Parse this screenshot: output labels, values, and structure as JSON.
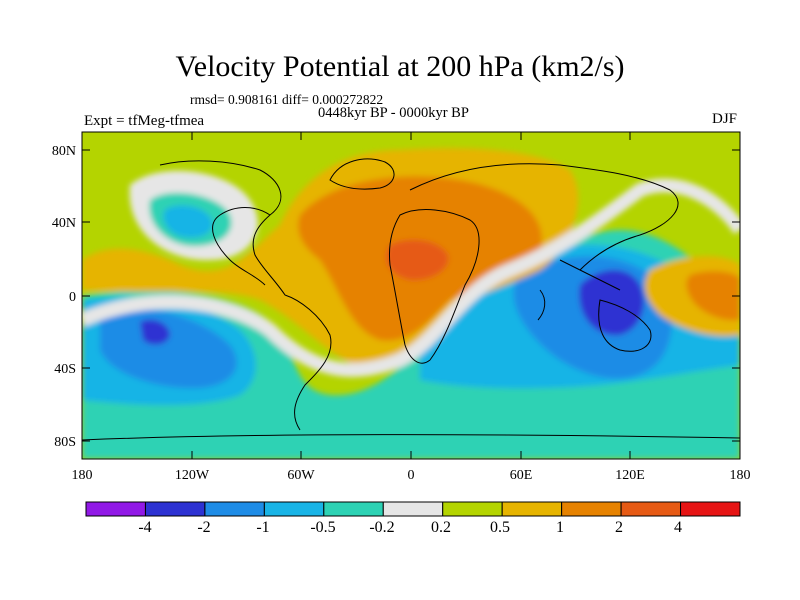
{
  "title": "Velocity Potential at 200 hPa (km2/s)",
  "stats": "rmsd= 0.908161 diff= 0.000272822",
  "period": "0448kyr BP - 0000kyr BP",
  "experiment": "Expt = tfMeg-tfmea",
  "season": "DJF",
  "map": {
    "lat_ticks": [
      "80N",
      "40N",
      "0",
      "40S",
      "80S"
    ],
    "lon_ticks": [
      "180",
      "120W",
      "60W",
      "0",
      "60E",
      "120E",
      "180"
    ],
    "lat_range": [
      -90,
      90
    ],
    "lon_range": [
      -180,
      180
    ],
    "background_color": "#b4d400"
  },
  "colorbar": {
    "labels": [
      "-4",
      "-2",
      "-1",
      "-0.5",
      "-0.2",
      "0.2",
      "0.5",
      "1",
      "2",
      "4"
    ],
    "colors": [
      "#9119e6",
      "#2d32d2",
      "#1e8ce6",
      "#19b4e6",
      "#2dd2b4",
      "#e6e6e6",
      "#b4d400",
      "#e6b400",
      "#e68200",
      "#e65a14",
      "#e61414"
    ]
  }
}
